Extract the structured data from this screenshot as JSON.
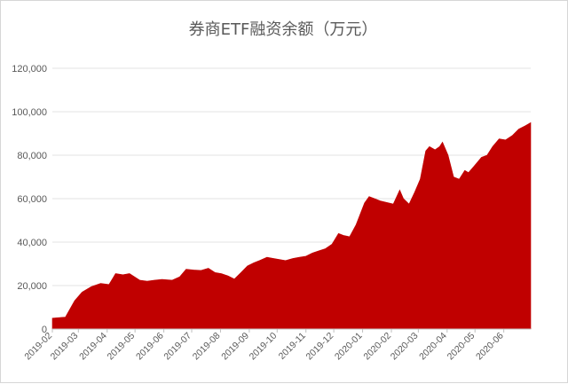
{
  "chart_data": {
    "type": "area",
    "title": "券商ETF融资余额（万元）",
    "xlabel": "",
    "ylabel": "",
    "ylim": [
      0,
      120000
    ],
    "y_ticks": [
      0,
      20000,
      40000,
      60000,
      80000,
      100000,
      120000
    ],
    "y_tick_labels": [
      "0",
      "20,000",
      "40,000",
      "60,000",
      "80,000",
      "100,000",
      "120,000"
    ],
    "x_range": [
      "2019-02-01",
      "2020-06-30"
    ],
    "x_ticks": [
      "2019-02",
      "2019-03",
      "2019-04",
      "2019-05",
      "2019-06",
      "2019-07",
      "2019-08",
      "2019-09",
      "2019-10",
      "2019-11",
      "2019-12",
      "2020-01",
      "2020-02",
      "2020-03",
      "2020-04",
      "2020-05",
      "2020-06"
    ],
    "grid": true,
    "legend": "none",
    "color": "#C00000",
    "x": [
      "2019-02-01",
      "2019-02-15",
      "2019-02-25",
      "2019-03-05",
      "2019-03-15",
      "2019-03-25",
      "2019-04-03",
      "2019-04-10",
      "2019-04-18",
      "2019-04-25",
      "2019-05-06",
      "2019-05-14",
      "2019-05-22",
      "2019-05-30",
      "2019-06-10",
      "2019-06-18",
      "2019-06-25",
      "2019-07-03",
      "2019-07-11",
      "2019-07-19",
      "2019-07-26",
      "2019-08-02",
      "2019-08-09",
      "2019-08-16",
      "2019-08-23",
      "2019-08-30",
      "2019-09-06",
      "2019-09-12",
      "2019-09-20",
      "2019-09-27",
      "2019-10-10",
      "2019-10-18",
      "2019-10-25",
      "2019-11-01",
      "2019-11-08",
      "2019-11-15",
      "2019-11-22",
      "2019-11-29",
      "2019-12-06",
      "2019-12-12",
      "2019-12-18",
      "2019-12-25",
      "2020-01-03",
      "2020-01-08",
      "2020-01-14",
      "2020-01-20",
      "2020-02-03",
      "2020-02-10",
      "2020-02-14",
      "2020-02-20",
      "2020-02-26",
      "2020-03-03",
      "2020-03-09",
      "2020-03-13",
      "2020-03-19",
      "2020-03-24",
      "2020-03-27",
      "2020-04-02",
      "2020-04-08",
      "2020-04-14",
      "2020-04-20",
      "2020-04-24",
      "2020-04-30",
      "2020-05-08",
      "2020-05-14",
      "2020-05-20",
      "2020-05-27",
      "2020-06-03",
      "2020-06-10",
      "2020-06-17",
      "2020-06-24",
      "2020-06-30"
    ],
    "values": [
      5000,
      5500,
      13000,
      17000,
      19500,
      21000,
      20500,
      25500,
      25000,
      25500,
      22500,
      22000,
      22500,
      22800,
      22500,
      24000,
      27500,
      27200,
      27000,
      28000,
      26000,
      25500,
      24500,
      23000,
      26000,
      29000,
      30500,
      31500,
      33000,
      32500,
      31500,
      32500,
      33000,
      33500,
      35000,
      36000,
      37000,
      39000,
      44000,
      43000,
      42500,
      48000,
      58000,
      61000,
      60000,
      59000,
      57500,
      64000,
      60000,
      57500,
      63000,
      69000,
      82000,
      84000,
      82500,
      84000,
      86000,
      80000,
      70000,
      69000,
      73000,
      72000,
      75000,
      79000,
      80000,
      84000,
      87500,
      87000,
      89000,
      92000,
      93500,
      95000
    ]
  }
}
